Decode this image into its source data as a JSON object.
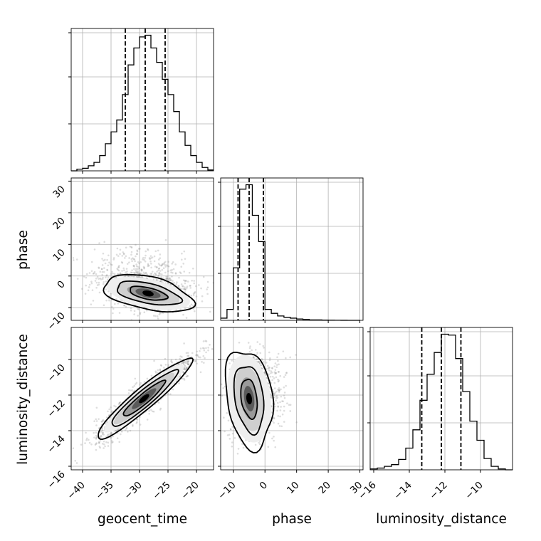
{
  "chart_data": {
    "type": "corner",
    "parameters": [
      "geocent_time",
      "phase",
      "luminosity_distance"
    ],
    "axis_labels": {
      "x": [
        "geocent_time",
        "phase",
        "luminosity_distance"
      ],
      "y": [
        "phase",
        "luminosity_distance"
      ]
    },
    "ranges": {
      "geocent_time": [
        -42,
        -17
      ],
      "phase": [
        -14,
        31
      ],
      "luminosity_distance": [
        -16.2,
        -8.2
      ]
    },
    "ticks": {
      "geocent_time": [
        -40,
        -35,
        -30,
        -25,
        -20
      ],
      "phase_x": [
        -10,
        0,
        10,
        20,
        30
      ],
      "phase_y": [
        -10,
        0,
        10,
        20,
        30
      ],
      "luminosity_distance_x": [
        -16,
        -14,
        -12,
        -10
      ],
      "luminosity_distance_y": [
        -16,
        -14,
        -12,
        -10
      ]
    },
    "quantiles": {
      "geocent_time": [
        -32.5,
        -29.0,
        -25.5
      ],
      "phase": [
        -8.5,
        -5.0,
        -0.5
      ],
      "luminosity_distance": [
        -13.3,
        -12.2,
        -11.1
      ]
    },
    "histograms": {
      "geocent_time": {
        "edges": [
          -42,
          -41,
          -40,
          -39,
          -38,
          -37,
          -36,
          -35,
          -34,
          -33,
          -32,
          -31,
          -30,
          -29,
          -28,
          -27,
          -26,
          -25,
          -24,
          -23,
          -22,
          -21,
          -20,
          -19,
          -18,
          -17
        ],
        "counts": [
          0,
          2,
          3,
          6,
          10,
          18,
          32,
          46,
          60,
          90,
          125,
          145,
          158,
          160,
          145,
          128,
          108,
          90,
          70,
          46,
          30,
          18,
          10,
          4,
          1
        ]
      },
      "phase": {
        "edges": [
          -14,
          -12,
          -10,
          -8,
          -6,
          -4,
          -2,
          0,
          2,
          4,
          6,
          8,
          10,
          12,
          14,
          16,
          18,
          20,
          22,
          24,
          26,
          28,
          30
        ],
        "counts": [
          5,
          25,
          120,
          300,
          310,
          240,
          180,
          25,
          16,
          10,
          7,
          5,
          3,
          2,
          1,
          1,
          0.5,
          0.3,
          0.2,
          0.1,
          0,
          0
        ]
      },
      "luminosity_distance": {
        "edges": [
          -16.2,
          -15.8,
          -15.4,
          -15.0,
          -14.6,
          -14.2,
          -13.8,
          -13.4,
          -13.0,
          -12.6,
          -12.2,
          -11.8,
          -11.4,
          -11.0,
          -10.6,
          -10.2,
          -9.8,
          -9.4,
          -9.0,
          -8.6,
          -8.2
        ],
        "counts": [
          1,
          2,
          4,
          6,
          12,
          25,
          46,
          80,
          110,
          135,
          156,
          155,
          128,
          90,
          56,
          34,
          13,
          4,
          1,
          0
        ]
      }
    },
    "grid": true
  }
}
